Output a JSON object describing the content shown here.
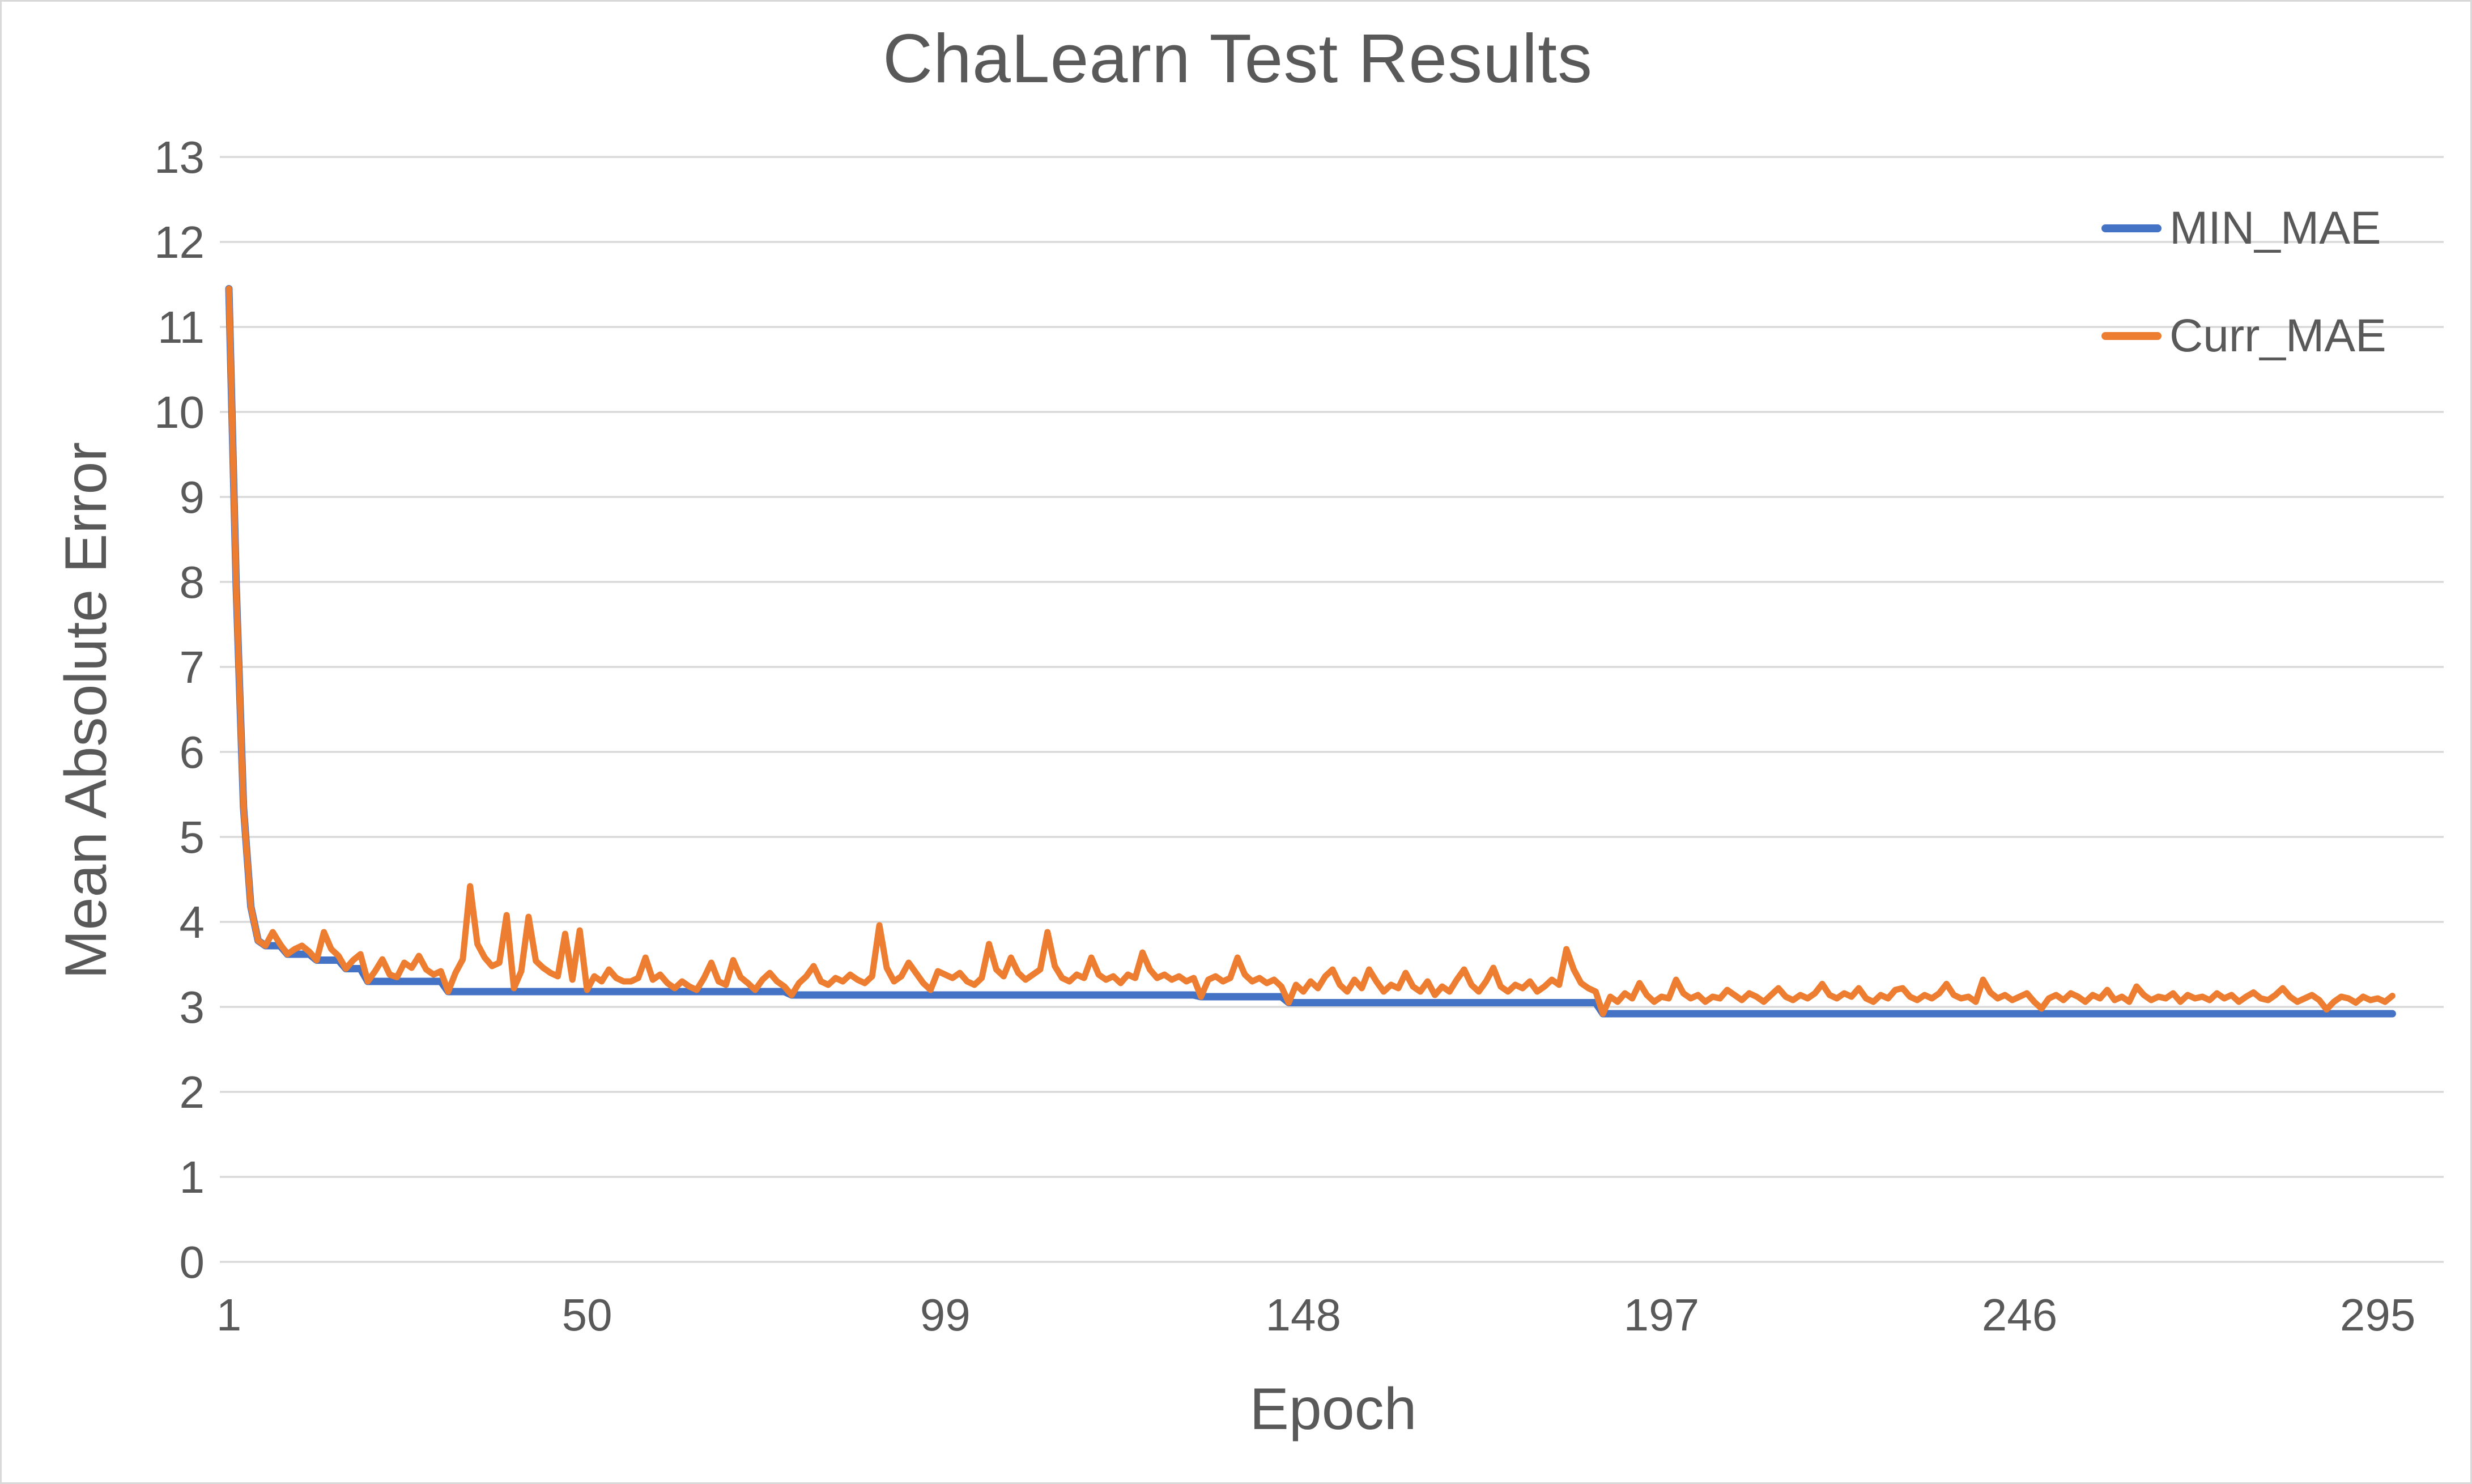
{
  "title": "ChaLearn Test Results",
  "axes": {
    "x_label": "Epoch",
    "y_label": "Mean Absolute Error"
  },
  "legend": [
    {
      "label": "MIN_MAE",
      "color": "#4472C4"
    },
    {
      "label": "Curr_MAE",
      "color": "#ED7D31"
    }
  ],
  "colors": {
    "min_series": "#4472C4",
    "curr_series": "#ED7D31",
    "gridline": "#D9D9D9",
    "text": "#595959",
    "border": "#D9D9D9",
    "background": "#FFFFFF"
  },
  "chart_data": {
    "type": "line",
    "title": "ChaLearn Test Results",
    "xlabel": "Epoch",
    "ylabel": "Mean Absolute Error",
    "xlim": [
      1,
      297
    ],
    "ylim": [
      0,
      13
    ],
    "x_ticks": [
      1,
      50,
      99,
      148,
      197,
      246,
      295
    ],
    "y_ticks": [
      0,
      1,
      2,
      3,
      4,
      5,
      6,
      7,
      8,
      9,
      10,
      11,
      12,
      13
    ],
    "grid": "horizontal",
    "legend_position": "inside-top-right",
    "series": [
      {
        "name": "MIN_MAE",
        "color": "#4472C4",
        "representation": "step_breakpoints_running_minimum",
        "breakpoints": [
          [
            1,
            11.45
          ],
          [
            2,
            7.95
          ],
          [
            3,
            5.35
          ],
          [
            4,
            4.18
          ],
          [
            5,
            3.78
          ],
          [
            6,
            3.72
          ],
          [
            9,
            3.62
          ],
          [
            13,
            3.55
          ],
          [
            17,
            3.45
          ],
          [
            20,
            3.3
          ],
          [
            31,
            3.18
          ],
          [
            78,
            3.14
          ],
          [
            134,
            3.12
          ],
          [
            146,
            3.05
          ],
          [
            189,
            2.92
          ]
        ],
        "last_epoch": 297
      },
      {
        "name": "Curr_MAE",
        "color": "#ED7D31",
        "x_start": 1,
        "values": [
          11.45,
          7.95,
          5.35,
          4.18,
          3.78,
          3.72,
          3.88,
          3.74,
          3.62,
          3.68,
          3.72,
          3.65,
          3.55,
          3.88,
          3.68,
          3.6,
          3.45,
          3.55,
          3.62,
          3.3,
          3.42,
          3.56,
          3.38,
          3.35,
          3.52,
          3.46,
          3.6,
          3.44,
          3.38,
          3.42,
          3.18,
          3.4,
          3.56,
          4.42,
          3.74,
          3.58,
          3.48,
          3.52,
          4.08,
          3.22,
          3.42,
          4.06,
          3.54,
          3.46,
          3.4,
          3.36,
          3.86,
          3.32,
          3.9,
          3.2,
          3.36,
          3.3,
          3.44,
          3.34,
          3.3,
          3.3,
          3.34,
          3.58,
          3.32,
          3.38,
          3.28,
          3.22,
          3.3,
          3.24,
          3.2,
          3.34,
          3.52,
          3.3,
          3.26,
          3.55,
          3.35,
          3.28,
          3.2,
          3.32,
          3.4,
          3.3,
          3.24,
          3.14,
          3.28,
          3.36,
          3.48,
          3.3,
          3.26,
          3.34,
          3.3,
          3.38,
          3.32,
          3.28,
          3.36,
          3.96,
          3.46,
          3.3,
          3.36,
          3.52,
          3.4,
          3.28,
          3.2,
          3.42,
          3.38,
          3.34,
          3.4,
          3.3,
          3.26,
          3.34,
          3.74,
          3.44,
          3.36,
          3.58,
          3.4,
          3.32,
          3.38,
          3.44,
          3.88,
          3.48,
          3.34,
          3.3,
          3.38,
          3.34,
          3.58,
          3.38,
          3.32,
          3.36,
          3.28,
          3.38,
          3.34,
          3.64,
          3.44,
          3.34,
          3.38,
          3.32,
          3.36,
          3.3,
          3.34,
          3.12,
          3.32,
          3.36,
          3.3,
          3.34,
          3.58,
          3.38,
          3.3,
          3.34,
          3.28,
          3.32,
          3.24,
          3.05,
          3.26,
          3.18,
          3.3,
          3.22,
          3.36,
          3.44,
          3.26,
          3.18,
          3.32,
          3.22,
          3.44,
          3.3,
          3.18,
          3.26,
          3.22,
          3.4,
          3.24,
          3.18,
          3.3,
          3.14,
          3.24,
          3.18,
          3.32,
          3.44,
          3.26,
          3.18,
          3.3,
          3.46,
          3.24,
          3.18,
          3.26,
          3.22,
          3.3,
          3.18,
          3.24,
          3.32,
          3.26,
          3.68,
          3.44,
          3.28,
          3.22,
          3.18,
          2.92,
          3.12,
          3.06,
          3.16,
          3.1,
          3.28,
          3.14,
          3.06,
          3.12,
          3.1,
          3.32,
          3.16,
          3.1,
          3.14,
          3.06,
          3.12,
          3.1,
          3.2,
          3.14,
          3.08,
          3.16,
          3.12,
          3.06,
          3.14,
          3.22,
          3.12,
          3.08,
          3.14,
          3.1,
          3.16,
          3.27,
          3.14,
          3.1,
          3.16,
          3.12,
          3.22,
          3.1,
          3.06,
          3.14,
          3.1,
          3.2,
          3.22,
          3.12,
          3.08,
          3.14,
          3.1,
          3.16,
          3.27,
          3.14,
          3.1,
          3.12,
          3.06,
          3.32,
          3.17,
          3.1,
          3.14,
          3.08,
          3.12,
          3.16,
          3.06,
          2.98,
          3.1,
          3.14,
          3.08,
          3.16,
          3.12,
          3.06,
          3.14,
          3.1,
          3.2,
          3.08,
          3.12,
          3.06,
          3.24,
          3.14,
          3.08,
          3.12,
          3.1,
          3.16,
          3.06,
          3.14,
          3.1,
          3.12,
          3.08,
          3.16,
          3.1,
          3.14,
          3.06,
          3.12,
          3.17,
          3.1,
          3.08,
          3.14,
          3.22,
          3.12,
          3.06,
          3.1,
          3.14,
          3.08,
          2.97,
          3.06,
          3.12,
          3.1,
          3.05,
          3.12,
          3.08,
          3.1,
          3.06,
          3.13
        ]
      }
    ]
  }
}
